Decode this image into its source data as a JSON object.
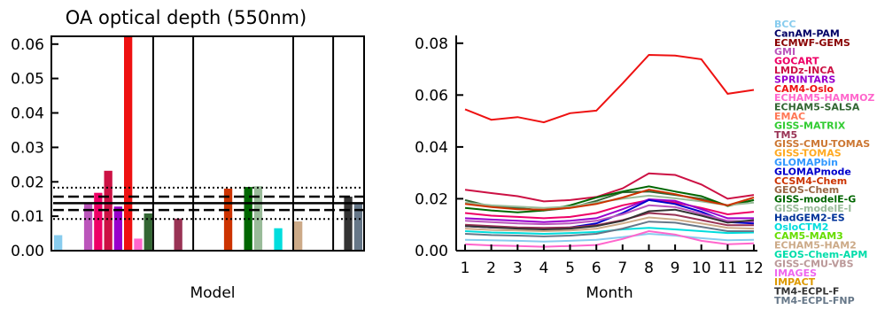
{
  "chart_data": [
    {
      "type": "bar",
      "title": "OA optical depth (550nm)",
      "xlabel": "Model",
      "ylabel": "",
      "ylim": [
        0,
        0.062
      ],
      "yticks": [
        "0.00",
        "0.01",
        "0.02",
        "0.03",
        "0.04",
        "0.05",
        "0.06"
      ],
      "categories": [
        "BCC",
        "CanAM-PAM",
        "ECMWF-GEMS",
        "GMI",
        "GOCART",
        "LMDz-INCA",
        "SPRINTARS",
        "CAM4-Oslo",
        "ECHAM5-HAMMOZ",
        "ECHAM5-SALSA",
        "EMAC",
        "GISS-MATRIX",
        "TM5",
        "GISS-CMU-TOMAS",
        "GISS-TOMAS",
        "GLOMAPbin",
        "GLOMAPmode",
        "CCSM4-Chem",
        "GEOS-Chem",
        "GISS-modelE-G",
        "GISS-modelE-I",
        "HadGEM2-ES",
        "OsloCTM2",
        "CAM5-MAM3",
        "ECHAM5-HAM2",
        "GEOS-Chem-APM",
        "GISS-CMU-VBS",
        "IMAGES",
        "IMPACT",
        "TM4-ECPL-F",
        "TM4-ECPL-FNP"
      ],
      "values": [
        0.0045,
        null,
        null,
        0.0135,
        0.0168,
        0.0232,
        0.0128,
        0.062,
        0.0035,
        0.0108,
        null,
        null,
        0.0093,
        null,
        null,
        null,
        null,
        0.018,
        null,
        0.0185,
        0.0187,
        null,
        0.0065,
        null,
        0.0085,
        null,
        null,
        null,
        null,
        0.0157,
        0.0135
      ],
      "reference_lines": [
        {
          "style": "dotted",
          "value": 0.0183
        },
        {
          "style": "dashed",
          "value": 0.0157
        },
        {
          "style": "solid",
          "value": 0.0138
        },
        {
          "style": "dashed",
          "value": 0.0118
        },
        {
          "style": "dotted",
          "value": 0.0092
        }
      ],
      "group_separators_after_index": [
        9,
        13,
        23,
        27
      ],
      "grid": false
    },
    {
      "type": "line",
      "title": "",
      "xlabel": "Month",
      "ylabel": "",
      "x": [
        1,
        2,
        3,
        4,
        5,
        6,
        7,
        8,
        9,
        10,
        11,
        12
      ],
      "xticks": [
        "1",
        "2",
        "3",
        "4",
        "5",
        "6",
        "7",
        "8",
        "9",
        "10",
        "11",
        "12"
      ],
      "ylim": [
        0,
        0.083
      ],
      "yticks": [
        "0.00",
        "0.02",
        "0.04",
        "0.06",
        "0.08"
      ],
      "grid": false,
      "legend_position": "right",
      "series": [
        {
          "name": "CAM4-Oslo",
          "color": "#ee1111",
          "values": [
            0.0545,
            0.0505,
            0.0515,
            0.0495,
            0.053,
            0.054,
            0.0645,
            0.0755,
            0.0752,
            0.0738,
            0.0605,
            0.062
          ]
        },
        {
          "name": "LMDz-INCA",
          "color": "#cc1144",
          "values": [
            0.0235,
            0.0222,
            0.021,
            0.019,
            0.0195,
            0.0207,
            0.024,
            0.0298,
            0.0292,
            0.0255,
            0.02,
            0.0215
          ]
        },
        {
          "name": "ECHAM5-SALSA",
          "color": "#336633",
          "values": [
            0.0195,
            0.017,
            0.0165,
            0.0155,
            0.0165,
            0.0192,
            0.0225,
            0.0228,
            0.0215,
            0.02,
            0.0175,
            0.0195
          ]
        },
        {
          "name": "GISS-modelE-G",
          "color": "#006600",
          "values": [
            0.0165,
            0.0155,
            0.0148,
            0.0155,
            0.0175,
            0.0205,
            0.0228,
            0.0248,
            0.0228,
            0.021,
            0.0172,
            0.0195
          ]
        },
        {
          "name": "GISS-modelE-I",
          "color": "#99bb99",
          "values": [
            0.0185,
            0.0175,
            0.017,
            0.0165,
            0.017,
            0.0185,
            0.02,
            0.0212,
            0.0202,
            0.019,
            0.0175,
            0.0185
          ]
        },
        {
          "name": "CCSM4-Chem",
          "color": "#cc3300",
          "values": [
            0.018,
            0.0168,
            0.016,
            0.0158,
            0.0165,
            0.018,
            0.0205,
            0.0235,
            0.0218,
            0.0195,
            0.0175,
            0.0205
          ]
        },
        {
          "name": "GOCART",
          "color": "#ee0066",
          "values": [
            0.0145,
            0.0135,
            0.013,
            0.0125,
            0.013,
            0.0145,
            0.0175,
            0.0195,
            0.0185,
            0.0165,
            0.014,
            0.015
          ]
        },
        {
          "name": "SPRINTARS",
          "color": "#9900cc",
          "values": [
            0.0125,
            0.012,
            0.0115,
            0.011,
            0.0115,
            0.0125,
            0.016,
            0.0198,
            0.0192,
            0.016,
            0.0125,
            0.0125
          ]
        },
        {
          "name": "GLOMAPmode",
          "color": "#0000cc",
          "values": [
            0.0095,
            0.009,
            0.0088,
            0.0085,
            0.009,
            0.0105,
            0.0145,
            0.0195,
            0.018,
            0.015,
            0.011,
            0.0105
          ]
        },
        {
          "name": "GMI",
          "color": "#bb55bb",
          "values": [
            0.0115,
            0.011,
            0.0105,
            0.0102,
            0.0105,
            0.0115,
            0.014,
            0.0175,
            0.0168,
            0.0142,
            0.0115,
            0.0112
          ]
        },
        {
          "name": "TM5",
          "color": "#993355",
          "values": [
            0.01,
            0.0095,
            0.009,
            0.0088,
            0.009,
            0.0098,
            0.0118,
            0.0145,
            0.0138,
            0.0118,
            0.0098,
            0.0098
          ]
        },
        {
          "name": "ECHAM5-HAM2",
          "color": "#ccaa88",
          "values": [
            0.0085,
            0.008,
            0.0078,
            0.0075,
            0.0078,
            0.0085,
            0.0105,
            0.0128,
            0.012,
            0.0105,
            0.0088,
            0.0085
          ]
        },
        {
          "name": "OsloCTM2",
          "color": "#00dddd",
          "values": [
            0.0075,
            0.007,
            0.0068,
            0.0065,
            0.0068,
            0.0072,
            0.0082,
            0.0088,
            0.0082,
            0.0075,
            0.0068,
            0.007
          ]
        },
        {
          "name": "TM4-ECPL-F",
          "color": "#333333",
          "values": [
            0.0095,
            0.009,
            0.0085,
            0.0082,
            0.0085,
            0.0095,
            0.0115,
            0.0152,
            0.0158,
            0.0135,
            0.0108,
            0.0118
          ]
        },
        {
          "name": "TM4-ECPL-FNP",
          "color": "#667788",
          "values": [
            0.0065,
            0.006,
            0.0058,
            0.0055,
            0.0058,
            0.0065,
            0.0085,
            0.0112,
            0.0108,
            0.0092,
            0.0075,
            0.0075
          ]
        },
        {
          "name": "BCC",
          "color": "#88ccee",
          "values": [
            0.0042,
            0.004,
            0.0038,
            0.0035,
            0.0038,
            0.0042,
            0.0052,
            0.0065,
            0.0058,
            0.0048,
            0.004,
            0.0042
          ]
        },
        {
          "name": "ECHAM5-HAMMOZ",
          "color": "#ff66cc",
          "values": [
            0.0025,
            0.002,
            0.0018,
            0.0015,
            0.0018,
            0.0022,
            0.0045,
            0.0075,
            0.0062,
            0.0038,
            0.0025,
            0.0028
          ]
        }
      ]
    }
  ],
  "legend": [
    {
      "label": "BCC",
      "color": "#88ccee"
    },
    {
      "label": "CanAM-PAM",
      "color": "#000066"
    },
    {
      "label": "ECMWF-GEMS",
      "color": "#880000"
    },
    {
      "label": "GMI",
      "color": "#bb55bb"
    },
    {
      "label": "GOCART",
      "color": "#ee0066"
    },
    {
      "label": "LMDz-INCA",
      "color": "#cc1144"
    },
    {
      "label": "SPRINTARS",
      "color": "#9900cc"
    },
    {
      "label": "CAM4-Oslo",
      "color": "#ee1111"
    },
    {
      "label": "ECHAM5-HAMMOZ",
      "color": "#ff66cc"
    },
    {
      "label": "ECHAM5-SALSA",
      "color": "#336633"
    },
    {
      "label": "EMAC",
      "color": "#ff7755"
    },
    {
      "label": "GISS-MATRIX",
      "color": "#33cc33"
    },
    {
      "label": "TM5",
      "color": "#993355"
    },
    {
      "label": "GISS-CMU-TOMAS",
      "color": "#cc7733"
    },
    {
      "label": "GISS-TOMAS",
      "color": "#ffaa22"
    },
    {
      "label": "GLOMAPbin",
      "color": "#3399ff"
    },
    {
      "label": "GLOMAPmode",
      "color": "#0000cc"
    },
    {
      "label": "CCSM4-Chem",
      "color": "#cc3300"
    },
    {
      "label": "GEOS-Chem",
      "color": "#996644"
    },
    {
      "label": "GISS-modelE-G",
      "color": "#006600"
    },
    {
      "label": "GISS-modelE-I",
      "color": "#99bb99"
    },
    {
      "label": "HadGEM2-ES",
      "color": "#003399"
    },
    {
      "label": "OsloCTM2",
      "color": "#00dddd"
    },
    {
      "label": "CAM5-MAM3",
      "color": "#66dd00"
    },
    {
      "label": "ECHAM5-HAM2",
      "color": "#ccaa88"
    },
    {
      "label": "GEOS-Chem-APM",
      "color": "#00ddaa"
    },
    {
      "label": "GISS-CMU-VBS",
      "color": "#bb9999"
    },
    {
      "label": "IMAGES",
      "color": "#ee66ee"
    },
    {
      "label": "IMPACT",
      "color": "#dd9900"
    },
    {
      "label": "TM4-ECPL-F",
      "color": "#333333"
    },
    {
      "label": "TM4-ECPL-FNP",
      "color": "#667788"
    }
  ]
}
